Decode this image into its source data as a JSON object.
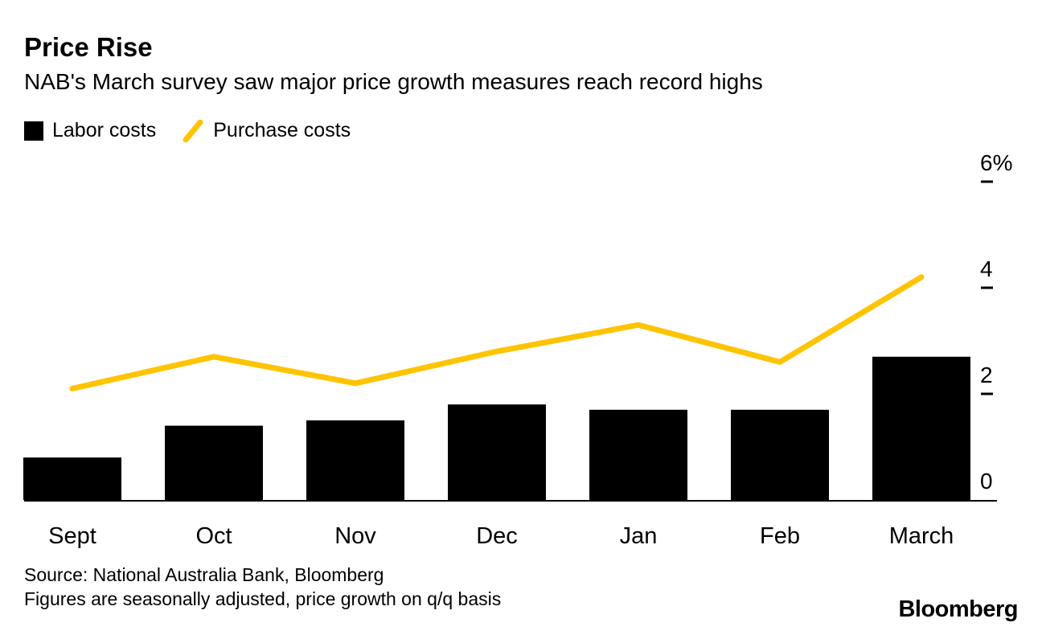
{
  "header": {
    "title": "Price Rise",
    "subtitle": "NAB's March survey saw major price growth measures reach record highs"
  },
  "legend": [
    {
      "label": "Labor costs",
      "color": "#000000",
      "swatch": "square"
    },
    {
      "label": "Purchase costs",
      "color": "#FFC400",
      "swatch": "line"
    }
  ],
  "chart_data": {
    "type": "bar+line",
    "categories": [
      "Sept",
      "Oct",
      "Nov",
      "Dec",
      "Jan",
      "Feb",
      "March"
    ],
    "series": [
      {
        "name": "Labor costs",
        "type": "bar",
        "color": "#000000",
        "values": [
          0.8,
          1.4,
          1.5,
          1.8,
          1.7,
          1.7,
          2.7
        ]
      },
      {
        "name": "Purchase costs",
        "type": "line",
        "color": "#FFC400",
        "values": [
          2.1,
          2.7,
          2.2,
          2.8,
          3.3,
          2.6,
          4.2
        ]
      }
    ],
    "ylim": [
      0,
      6
    ],
    "yticks": [
      0,
      2,
      4,
      6
    ],
    "ytick_labels": [
      "0",
      "2",
      "4",
      "6%"
    ],
    "ytick_side": "right",
    "grid": false,
    "legend_position": "top-left"
  },
  "footer": {
    "source": "Source: National Australia Bank, Bloomberg",
    "note": "Figures are seasonally adjusted, price growth on q/q basis",
    "brand": "Bloomberg"
  }
}
